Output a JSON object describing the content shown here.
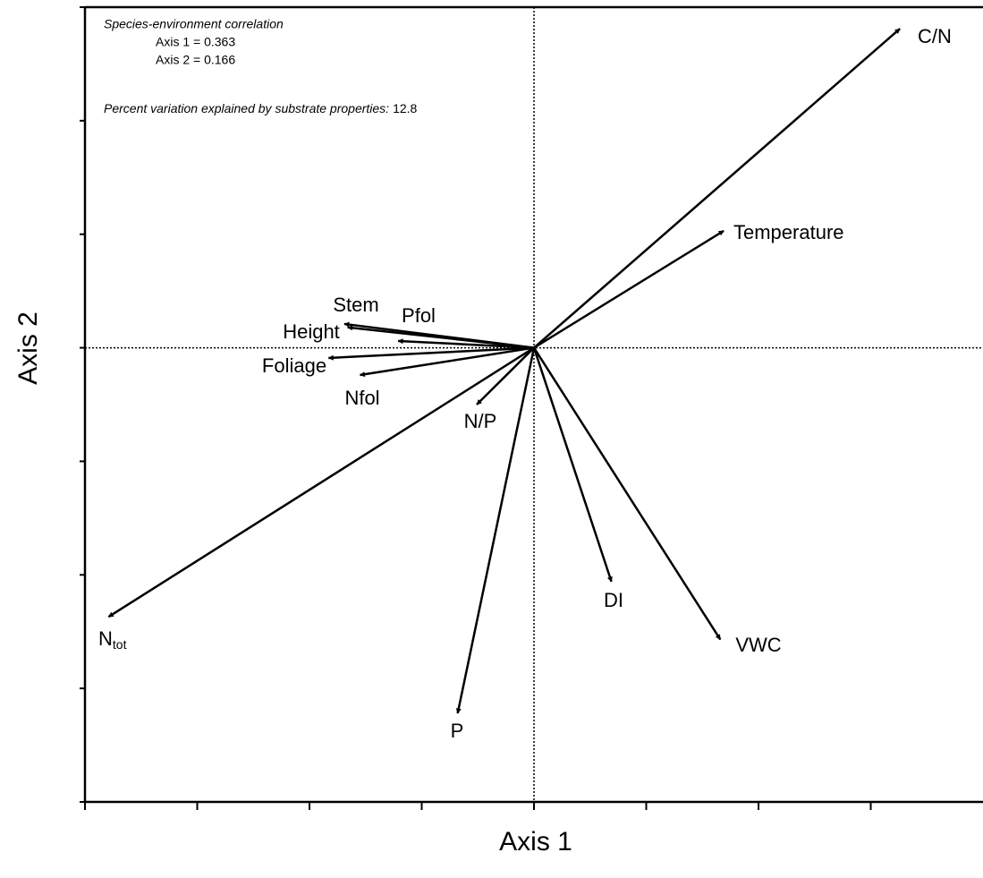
{
  "chart_data": {
    "type": "biplot",
    "xlabel": "Axis 1",
    "ylabel": "Axis 2",
    "xlim": [
      -4,
      4
    ],
    "ylim": [
      -4,
      3
    ],
    "xticks": [
      -4,
      -3,
      -2,
      -1,
      0,
      1,
      2,
      3
    ],
    "yticks": [
      -4,
      -3,
      -2,
      -1,
      0,
      1,
      2,
      3
    ],
    "color": "#000000",
    "annotations": [
      {
        "text": "Species-environment correlation",
        "italic": true
      },
      {
        "text": "Axis 1 = 0.363",
        "italic": false
      },
      {
        "text": "Axis 2 = 0.166",
        "italic": false
      },
      {
        "text": "Percent variation explained by substrate properties:",
        "italic": true,
        "value_text": "12.8"
      }
    ],
    "arrows": [
      {
        "label": "C/N",
        "x": 3.26,
        "y": 2.81
      },
      {
        "label": "Temperature",
        "x": 1.69,
        "y": 1.03
      },
      {
        "label": "Stem",
        "x": -1.69,
        "y": 0.21
      },
      {
        "label": "Pfol",
        "x": -1.21,
        "y": 0.06
      },
      {
        "label": "Height",
        "x": -1.66,
        "y": 0.18
      },
      {
        "label": "Foliage",
        "x": -1.83,
        "y": -0.09
      },
      {
        "label": "Nfol",
        "x": -1.55,
        "y": -0.24
      },
      {
        "label": "N/P",
        "x": -0.51,
        "y": -0.5
      },
      {
        "label": "N",
        "subscript": "tot",
        "x": -3.79,
        "y": -2.37
      },
      {
        "label": "P",
        "x": -0.68,
        "y": -3.22
      },
      {
        "label": "DI",
        "x": 0.69,
        "y": -2.06
      },
      {
        "label": "VWC",
        "x": 1.66,
        "y": -2.57
      }
    ]
  }
}
